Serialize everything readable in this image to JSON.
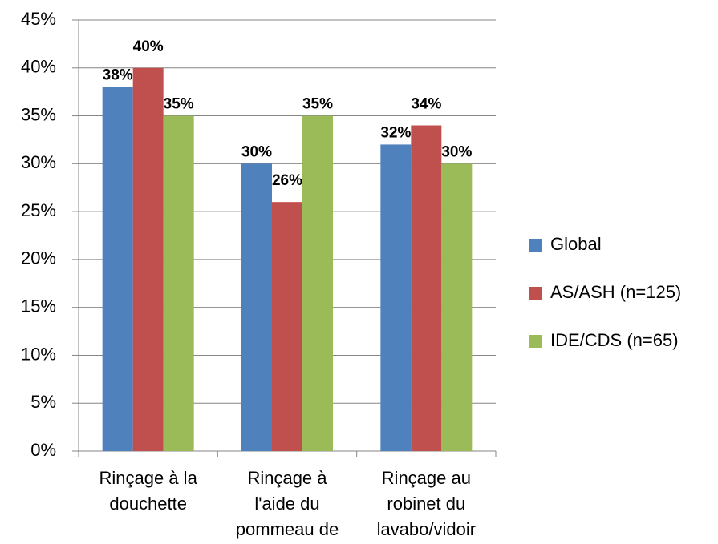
{
  "chart_data": {
    "type": "bar",
    "categories": [
      "Rinçage à la\ndouchette",
      "Rinçage à\nl'aide du\npommeau de",
      "Rinçage au\nrobinet du\nlavabo/vidoir"
    ],
    "series": [
      {
        "name": "Global",
        "color": "#4f81bd",
        "label_color": "#1f497d",
        "values": [
          38,
          30,
          32
        ],
        "value_labels": [
          "38%",
          "30%",
          "32%"
        ]
      },
      {
        "name": "AS/ASH (n=125)",
        "color": "#c0504d",
        "label_color": "#943634",
        "values": [
          40,
          26,
          34
        ],
        "value_labels": [
          "40%",
          "26%",
          "34%"
        ]
      },
      {
        "name": "IDE/CDS (n=65)",
        "color": "#9bbb59",
        "label_color": "#4f6228",
        "values": [
          35,
          35,
          30
        ],
        "value_labels": [
          "35%",
          "35%",
          "30%"
        ]
      }
    ],
    "ylim": [
      0,
      45
    ],
    "yticks": [
      {
        "value": 0,
        "label": "0%"
      },
      {
        "value": 5,
        "label": "5%"
      },
      {
        "value": 10,
        "label": "10%"
      },
      {
        "value": 15,
        "label": "15%"
      },
      {
        "value": 20,
        "label": "20%"
      },
      {
        "value": 25,
        "label": "25%"
      },
      {
        "value": 30,
        "label": "30%"
      },
      {
        "value": 35,
        "label": "35%"
      },
      {
        "value": 40,
        "label": "40%"
      },
      {
        "value": 45,
        "label": "45%"
      }
    ],
    "grid": true,
    "legend": "right"
  }
}
